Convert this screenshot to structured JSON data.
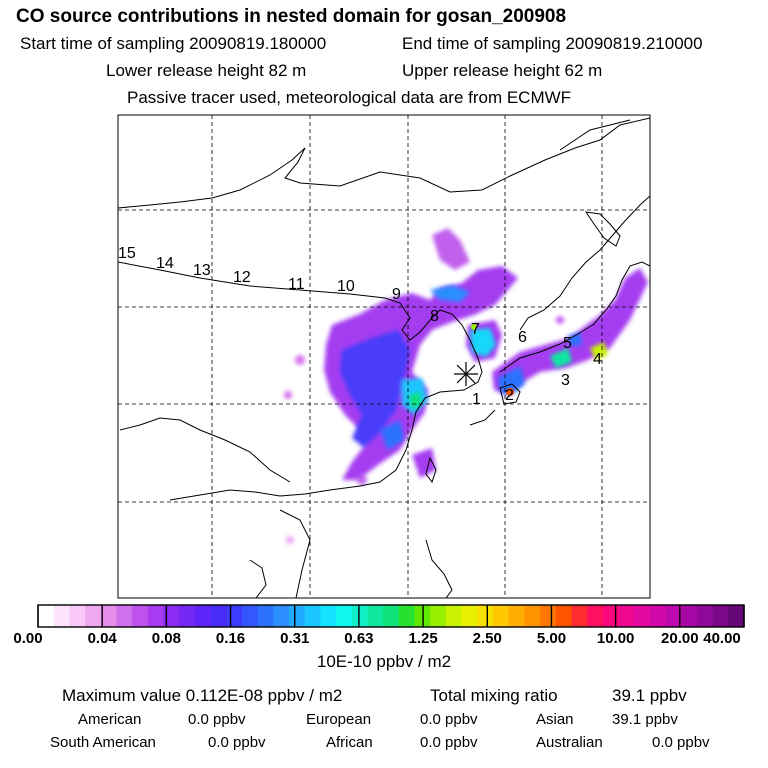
{
  "header": {
    "title": "CO  source contributions in nested domain for gosan_200908",
    "start_label": "Start time of sampling 20090819.180000",
    "end_label": "End time of sampling 20090819.210000",
    "lower_label": "Lower release height   82 m",
    "upper_label": "Upper release height   62 m",
    "tracer_label": "Passive tracer used, meteorological data are from ECMWF"
  },
  "map": {
    "release_marker": "asterisk-icon",
    "colors": {
      "background": "#ffffff",
      "coast": "#000000",
      "grid": "#000000"
    },
    "numbers": [
      {
        "label": "15"
      },
      {
        "label": "14"
      },
      {
        "label": "13"
      },
      {
        "label": "12"
      },
      {
        "label": "11"
      },
      {
        "label": "10"
      },
      {
        "label": "9"
      },
      {
        "label": "8"
      },
      {
        "label": "7"
      },
      {
        "label": "6"
      },
      {
        "label": "5"
      },
      {
        "label": "4"
      },
      {
        "label": "3"
      },
      {
        "label": "2"
      },
      {
        "label": "1"
      }
    ]
  },
  "colorbar": {
    "unit_label": "10E-10 ppbv / m2",
    "tick_labels": [
      "0.00",
      "0.04",
      "0.08",
      "0.16",
      "0.31",
      "0.63",
      "1.25",
      "2.50",
      "5.00",
      "10.00",
      "20.00",
      "40.00"
    ],
    "colors": [
      "#ffffff",
      "#fde6fd",
      "#f8c8f8",
      "#f0a8f0",
      "#e58ee9",
      "#d070ec",
      "#bf52ee",
      "#a83af2",
      "#8a2cf4",
      "#7428f6",
      "#5e26f8",
      "#4a2cfa",
      "#3c3cfc",
      "#3456fe",
      "#2c72ff",
      "#2a8eff",
      "#22aaff",
      "#1cc6ff",
      "#14e2ff",
      "#10f8f0",
      "#10f0c8",
      "#10e8a0",
      "#10e078",
      "#28e030",
      "#60e800",
      "#98ee00",
      "#c8f200",
      "#e8f000",
      "#f8e000",
      "#ffc800",
      "#ffae00",
      "#ff9400",
      "#ff7600",
      "#ff5400",
      "#ff2c30",
      "#ff1060",
      "#f8087c",
      "#ee0890",
      "#e008a0",
      "#d008a8",
      "#bc08ac",
      "#a608a6",
      "#900898",
      "#7a0888",
      "#640878"
    ]
  },
  "footer": {
    "max_value": "Maximum value  0.112E-08 ppbv / m2",
    "total_mixing": "Total mixing ratio",
    "total_value": "39.1 ppbv",
    "regions": [
      {
        "name": "American",
        "value": "0.0 ppbv"
      },
      {
        "name": "European",
        "value": "0.0 ppbv"
      },
      {
        "name": "Asian",
        "value": "39.1 ppbv"
      },
      {
        "name": "South American",
        "value": "0.0 ppbv"
      },
      {
        "name": "African",
        "value": "0.0 ppbv"
      },
      {
        "name": "Australian",
        "value": "0.0 ppbv"
      }
    ]
  }
}
